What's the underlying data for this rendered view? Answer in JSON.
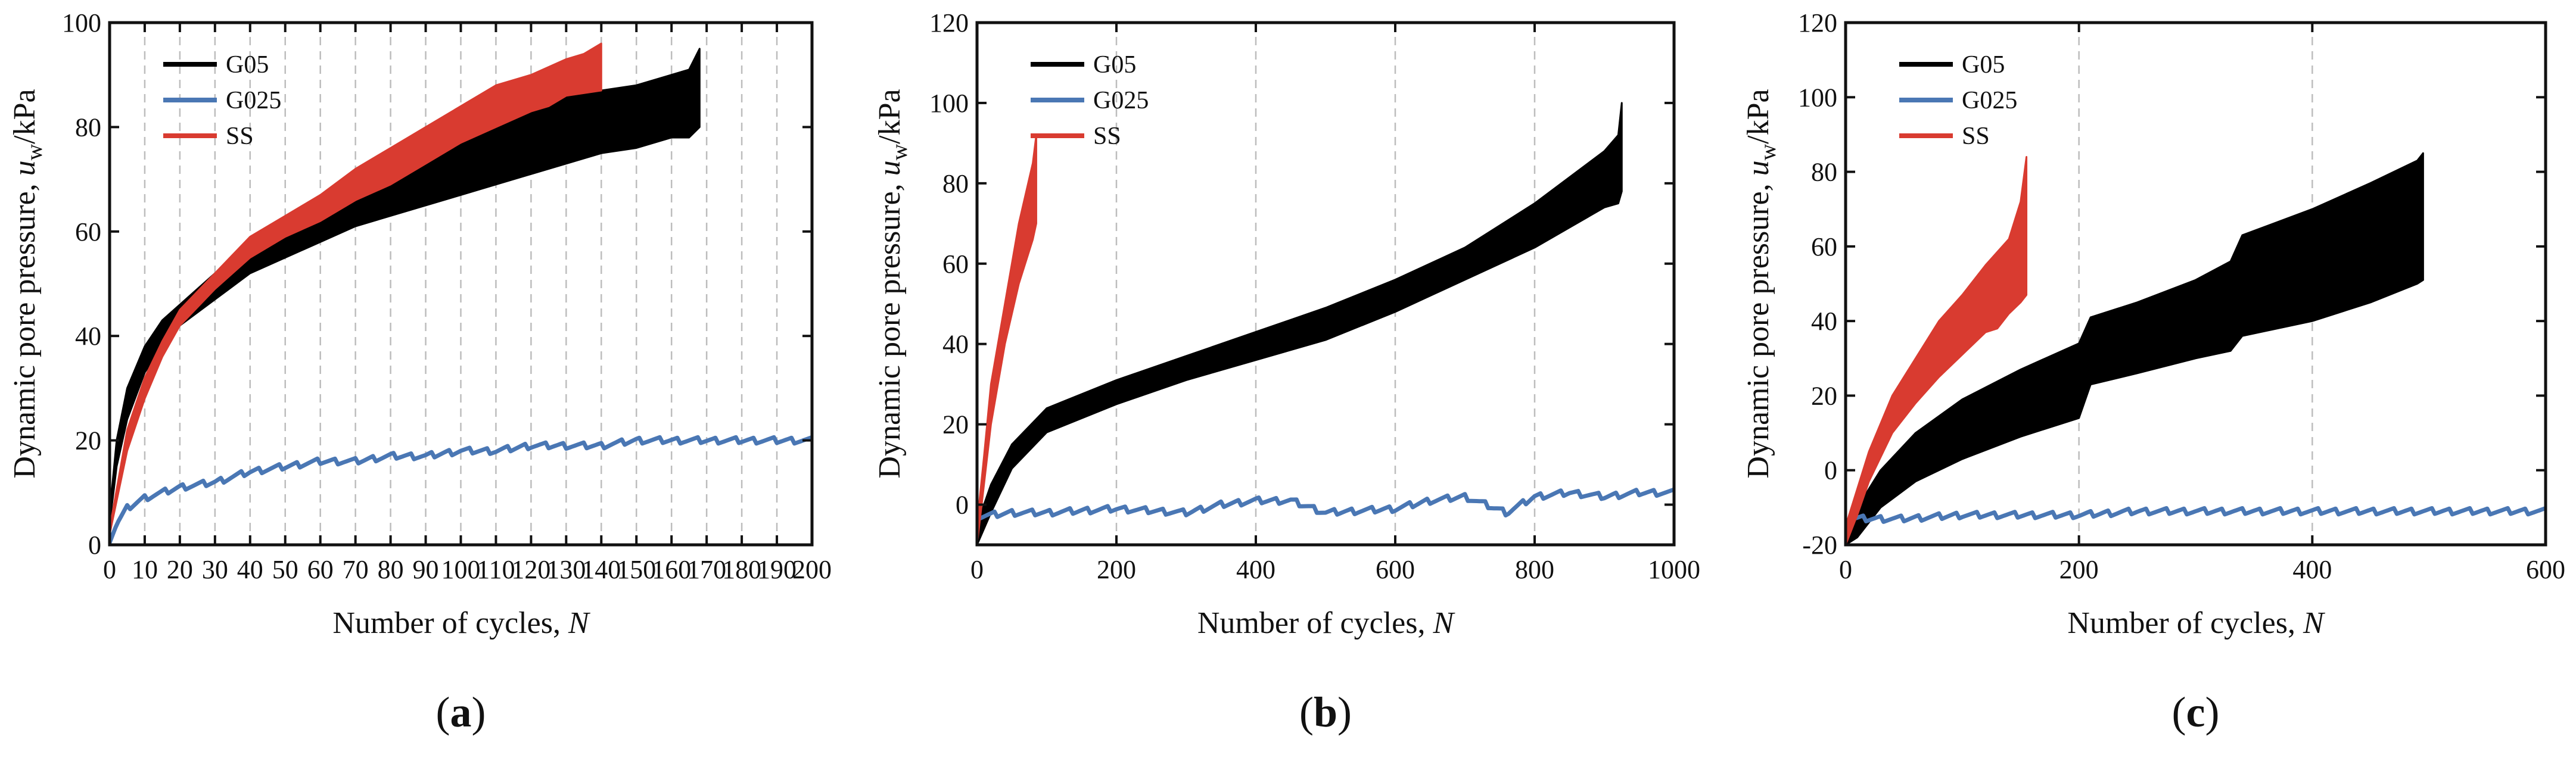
{
  "chart_data": [
    {
      "panel": "a",
      "type": "line",
      "label_open": "(",
      "label_letter": "a",
      "label_close": ")",
      "xlabel_text": "Number of cycles, ",
      "xlabel_symbol": "N",
      "ylabel_text": "Dynamic pore pressure, ",
      "ylabel_symbol": "u",
      "ylabel_subscript": "w",
      "ylabel_unit": "/kPa",
      "xlim": [
        0,
        200
      ],
      "ylim": [
        0,
        100
      ],
      "xticks": [
        "0",
        "10",
        "20",
        "30",
        "40",
        "50",
        "60",
        "70",
        "80",
        "90",
        "100",
        "110",
        "120",
        "130",
        "140",
        "150",
        "160",
        "170",
        "180",
        "190",
        "200"
      ],
      "yticks": [
        "0",
        "20",
        "40",
        "60",
        "80",
        "100"
      ],
      "grid": "vertical dashed",
      "legend_position": "top-left",
      "series": [
        {
          "name": "G05",
          "color": "#000000",
          "band": true,
          "upper": [
            [
              0,
              6
            ],
            [
              2,
              20
            ],
            [
              5,
              30
            ],
            [
              10,
              38
            ],
            [
              15,
              43
            ],
            [
              20,
              46
            ],
            [
              30,
              52
            ],
            [
              40,
              56
            ],
            [
              50,
              61
            ],
            [
              60,
              65
            ],
            [
              70,
              69
            ],
            [
              80,
              72
            ],
            [
              90,
              75
            ],
            [
              100,
              79
            ],
            [
              110,
              82
            ],
            [
              120,
              85
            ],
            [
              130,
              86
            ],
            [
              140,
              87
            ],
            [
              150,
              88
            ],
            [
              160,
              90
            ],
            [
              165,
              91
            ],
            [
              168,
              95
            ]
          ],
          "lower": [
            [
              0,
              4
            ],
            [
              2,
              15
            ],
            [
              5,
              24
            ],
            [
              10,
              33
            ],
            [
              15,
              38
            ],
            [
              20,
              42
            ],
            [
              30,
              47
            ],
            [
              40,
              52
            ],
            [
              50,
              55
            ],
            [
              60,
              58
            ],
            [
              70,
              61
            ],
            [
              80,
              63
            ],
            [
              90,
              65
            ],
            [
              100,
              67
            ],
            [
              110,
              69
            ],
            [
              120,
              71
            ],
            [
              130,
              73
            ],
            [
              140,
              75
            ],
            [
              150,
              76
            ],
            [
              160,
              78
            ],
            [
              165,
              78
            ],
            [
              168,
              80
            ]
          ]
        },
        {
          "name": "G025",
          "color": "#4a77b4",
          "band": false,
          "values": [
            [
              0,
              1
            ],
            [
              2,
              4
            ],
            [
              5,
              7
            ],
            [
              10,
              9
            ],
            [
              20,
              11
            ],
            [
              30,
              12
            ],
            [
              40,
              14
            ],
            [
              50,
              15
            ],
            [
              60,
              16
            ],
            [
              70,
              16
            ],
            [
              80,
              17
            ],
            [
              90,
              17
            ],
            [
              100,
              18
            ],
            [
              110,
              18
            ],
            [
              120,
              19
            ],
            [
              130,
              19
            ],
            [
              140,
              19
            ],
            [
              150,
              20
            ],
            [
              160,
              20
            ],
            [
              170,
              20
            ],
            [
              180,
              20
            ],
            [
              190,
              20
            ],
            [
              200,
              20
            ]
          ]
        },
        {
          "name": "SS",
          "color": "#d93b30",
          "band": true,
          "upper": [
            [
              0,
              3
            ],
            [
              5,
              22
            ],
            [
              10,
              32
            ],
            [
              15,
              39
            ],
            [
              20,
              45
            ],
            [
              30,
              52
            ],
            [
              40,
              59
            ],
            [
              50,
              63
            ],
            [
              60,
              67
            ],
            [
              70,
              72
            ],
            [
              80,
              76
            ],
            [
              90,
              80
            ],
            [
              100,
              84
            ],
            [
              110,
              88
            ],
            [
              120,
              90
            ],
            [
              130,
              93
            ],
            [
              135,
              94
            ],
            [
              140,
              96
            ]
          ],
          "lower": [
            [
              0,
              2
            ],
            [
              5,
              18
            ],
            [
              10,
              28
            ],
            [
              15,
              36
            ],
            [
              20,
              42
            ],
            [
              30,
              49
            ],
            [
              40,
              55
            ],
            [
              50,
              59
            ],
            [
              60,
              62
            ],
            [
              70,
              66
            ],
            [
              80,
              69
            ],
            [
              90,
              73
            ],
            [
              100,
              77
            ],
            [
              110,
              80
            ],
            [
              120,
              83
            ],
            [
              125,
              84
            ],
            [
              130,
              86
            ],
            [
              140,
              87
            ]
          ]
        }
      ]
    },
    {
      "panel": "b",
      "type": "line",
      "label_open": "(",
      "label_letter": "b",
      "label_close": ")",
      "xlabel_text": "Number of cycles, ",
      "xlabel_symbol": "N",
      "ylabel_text": "Dynamic pore pressure, ",
      "ylabel_symbol": "u",
      "ylabel_subscript": "w",
      "ylabel_unit": "/kPa",
      "xlim": [
        0,
        1000
      ],
      "ylim": [
        -10,
        120
      ],
      "xticks": [
        "0",
        "200",
        "400",
        "600",
        "800",
        "1000"
      ],
      "yticks": [
        "0",
        "20",
        "40",
        "60",
        "80",
        "100",
        "120"
      ],
      "grid": "vertical dashed",
      "legend_position": "top-left",
      "series": [
        {
          "name": "G05",
          "color": "#000000",
          "band": true,
          "upper": [
            [
              0,
              -5
            ],
            [
              20,
              5
            ],
            [
              50,
              15
            ],
            [
              100,
              24
            ],
            [
              200,
              31
            ],
            [
              300,
              37
            ],
            [
              400,
              43
            ],
            [
              500,
              49
            ],
            [
              600,
              56
            ],
            [
              700,
              64
            ],
            [
              800,
              75
            ],
            [
              900,
              88
            ],
            [
              920,
              92
            ],
            [
              925,
              100
            ]
          ],
          "lower": [
            [
              0,
              -10
            ],
            [
              20,
              -2
            ],
            [
              50,
              9
            ],
            [
              100,
              18
            ],
            [
              200,
              25
            ],
            [
              300,
              31
            ],
            [
              400,
              36
            ],
            [
              500,
              41
            ],
            [
              600,
              48
            ],
            [
              700,
              56
            ],
            [
              800,
              64
            ],
            [
              900,
              74
            ],
            [
              920,
              75
            ],
            [
              925,
              78
            ]
          ]
        },
        {
          "name": "G025",
          "color": "#4a77b4",
          "band": false,
          "values": [
            [
              0,
              -3
            ],
            [
              50,
              -2
            ],
            [
              100,
              -2
            ],
            [
              200,
              -1
            ],
            [
              300,
              -2
            ],
            [
              350,
              0
            ],
            [
              400,
              1
            ],
            [
              450,
              1
            ],
            [
              500,
              -2
            ],
            [
              600,
              -1
            ],
            [
              650,
              1
            ],
            [
              700,
              2
            ],
            [
              730,
              0
            ],
            [
              760,
              -2
            ],
            [
              800,
              2
            ],
            [
              850,
              3
            ],
            [
              900,
              2
            ],
            [
              950,
              3
            ],
            [
              1000,
              3
            ]
          ]
        },
        {
          "name": "SS",
          "color": "#d93b30",
          "band": true,
          "upper": [
            [
              0,
              -5
            ],
            [
              10,
              12
            ],
            [
              20,
              30
            ],
            [
              40,
              50
            ],
            [
              60,
              70
            ],
            [
              80,
              85
            ],
            [
              85,
              92
            ]
          ],
          "lower": [
            [
              0,
              -10
            ],
            [
              10,
              5
            ],
            [
              20,
              20
            ],
            [
              40,
              40
            ],
            [
              60,
              55
            ],
            [
              80,
              66
            ],
            [
              85,
              70
            ]
          ]
        }
      ]
    },
    {
      "panel": "c",
      "type": "line",
      "label_open": "(",
      "label_letter": "c",
      "label_close": ")",
      "xlabel_text": "Number of cycles, ",
      "xlabel_symbol": "N",
      "ylabel_text": "Dynamic pore pressure, ",
      "ylabel_symbol": "u",
      "ylabel_subscript": "w",
      "ylabel_unit": "/kPa",
      "xlim": [
        0,
        600
      ],
      "ylim": [
        -20,
        120
      ],
      "xticks": [
        "0",
        "200",
        "400",
        "600"
      ],
      "yticks": [
        "-20",
        "0",
        "20",
        "40",
        "60",
        "80",
        "100",
        "120"
      ],
      "grid": "vertical dashed",
      "legend_position": "top-left",
      "series": [
        {
          "name": "G05",
          "color": "#000000",
          "band": true,
          "upper": [
            [
              0,
              -20
            ],
            [
              10,
              -10
            ],
            [
              30,
              0
            ],
            [
              60,
              10
            ],
            [
              100,
              19
            ],
            [
              150,
              27
            ],
            [
              200,
              34
            ],
            [
              210,
              41
            ],
            [
              250,
              45
            ],
            [
              300,
              51
            ],
            [
              330,
              56
            ],
            [
              340,
              63
            ],
            [
              400,
              70
            ],
            [
              450,
              77
            ],
            [
              490,
              83
            ],
            [
              495,
              85
            ]
          ],
          "lower": [
            [
              0,
              -20
            ],
            [
              10,
              -18
            ],
            [
              30,
              -10
            ],
            [
              60,
              -3
            ],
            [
              100,
              3
            ],
            [
              150,
              9
            ],
            [
              200,
              14
            ],
            [
              210,
              23
            ],
            [
              250,
              26
            ],
            [
              300,
              30
            ],
            [
              330,
              32
            ],
            [
              340,
              36
            ],
            [
              400,
              40
            ],
            [
              450,
              45
            ],
            [
              490,
              50
            ],
            [
              495,
              51
            ]
          ]
        },
        {
          "name": "G025",
          "color": "#4a77b4",
          "band": false,
          "values": [
            [
              0,
              -13
            ],
            [
              50,
              -13
            ],
            [
              100,
              -12
            ],
            [
              150,
              -12
            ],
            [
              200,
              -12
            ],
            [
              250,
              -11
            ],
            [
              300,
              -11
            ],
            [
              350,
              -11
            ],
            [
              400,
              -11
            ],
            [
              450,
              -11
            ],
            [
              500,
              -11
            ],
            [
              550,
              -11
            ],
            [
              600,
              -11
            ]
          ]
        },
        {
          "name": "SS",
          "color": "#d93b30",
          "band": true,
          "upper": [
            [
              0,
              -15
            ],
            [
              10,
              -5
            ],
            [
              20,
              5
            ],
            [
              40,
              20
            ],
            [
              60,
              30
            ],
            [
              80,
              40
            ],
            [
              100,
              47
            ],
            [
              120,
              55
            ],
            [
              140,
              62
            ],
            [
              150,
              72
            ],
            [
              155,
              84
            ]
          ],
          "lower": [
            [
              0,
              -20
            ],
            [
              10,
              -12
            ],
            [
              20,
              -3
            ],
            [
              40,
              10
            ],
            [
              60,
              18
            ],
            [
              80,
              25
            ],
            [
              100,
              31
            ],
            [
              120,
              37
            ],
            [
              130,
              38
            ],
            [
              140,
              42
            ],
            [
              150,
              45
            ],
            [
              155,
              47
            ]
          ]
        }
      ]
    }
  ]
}
